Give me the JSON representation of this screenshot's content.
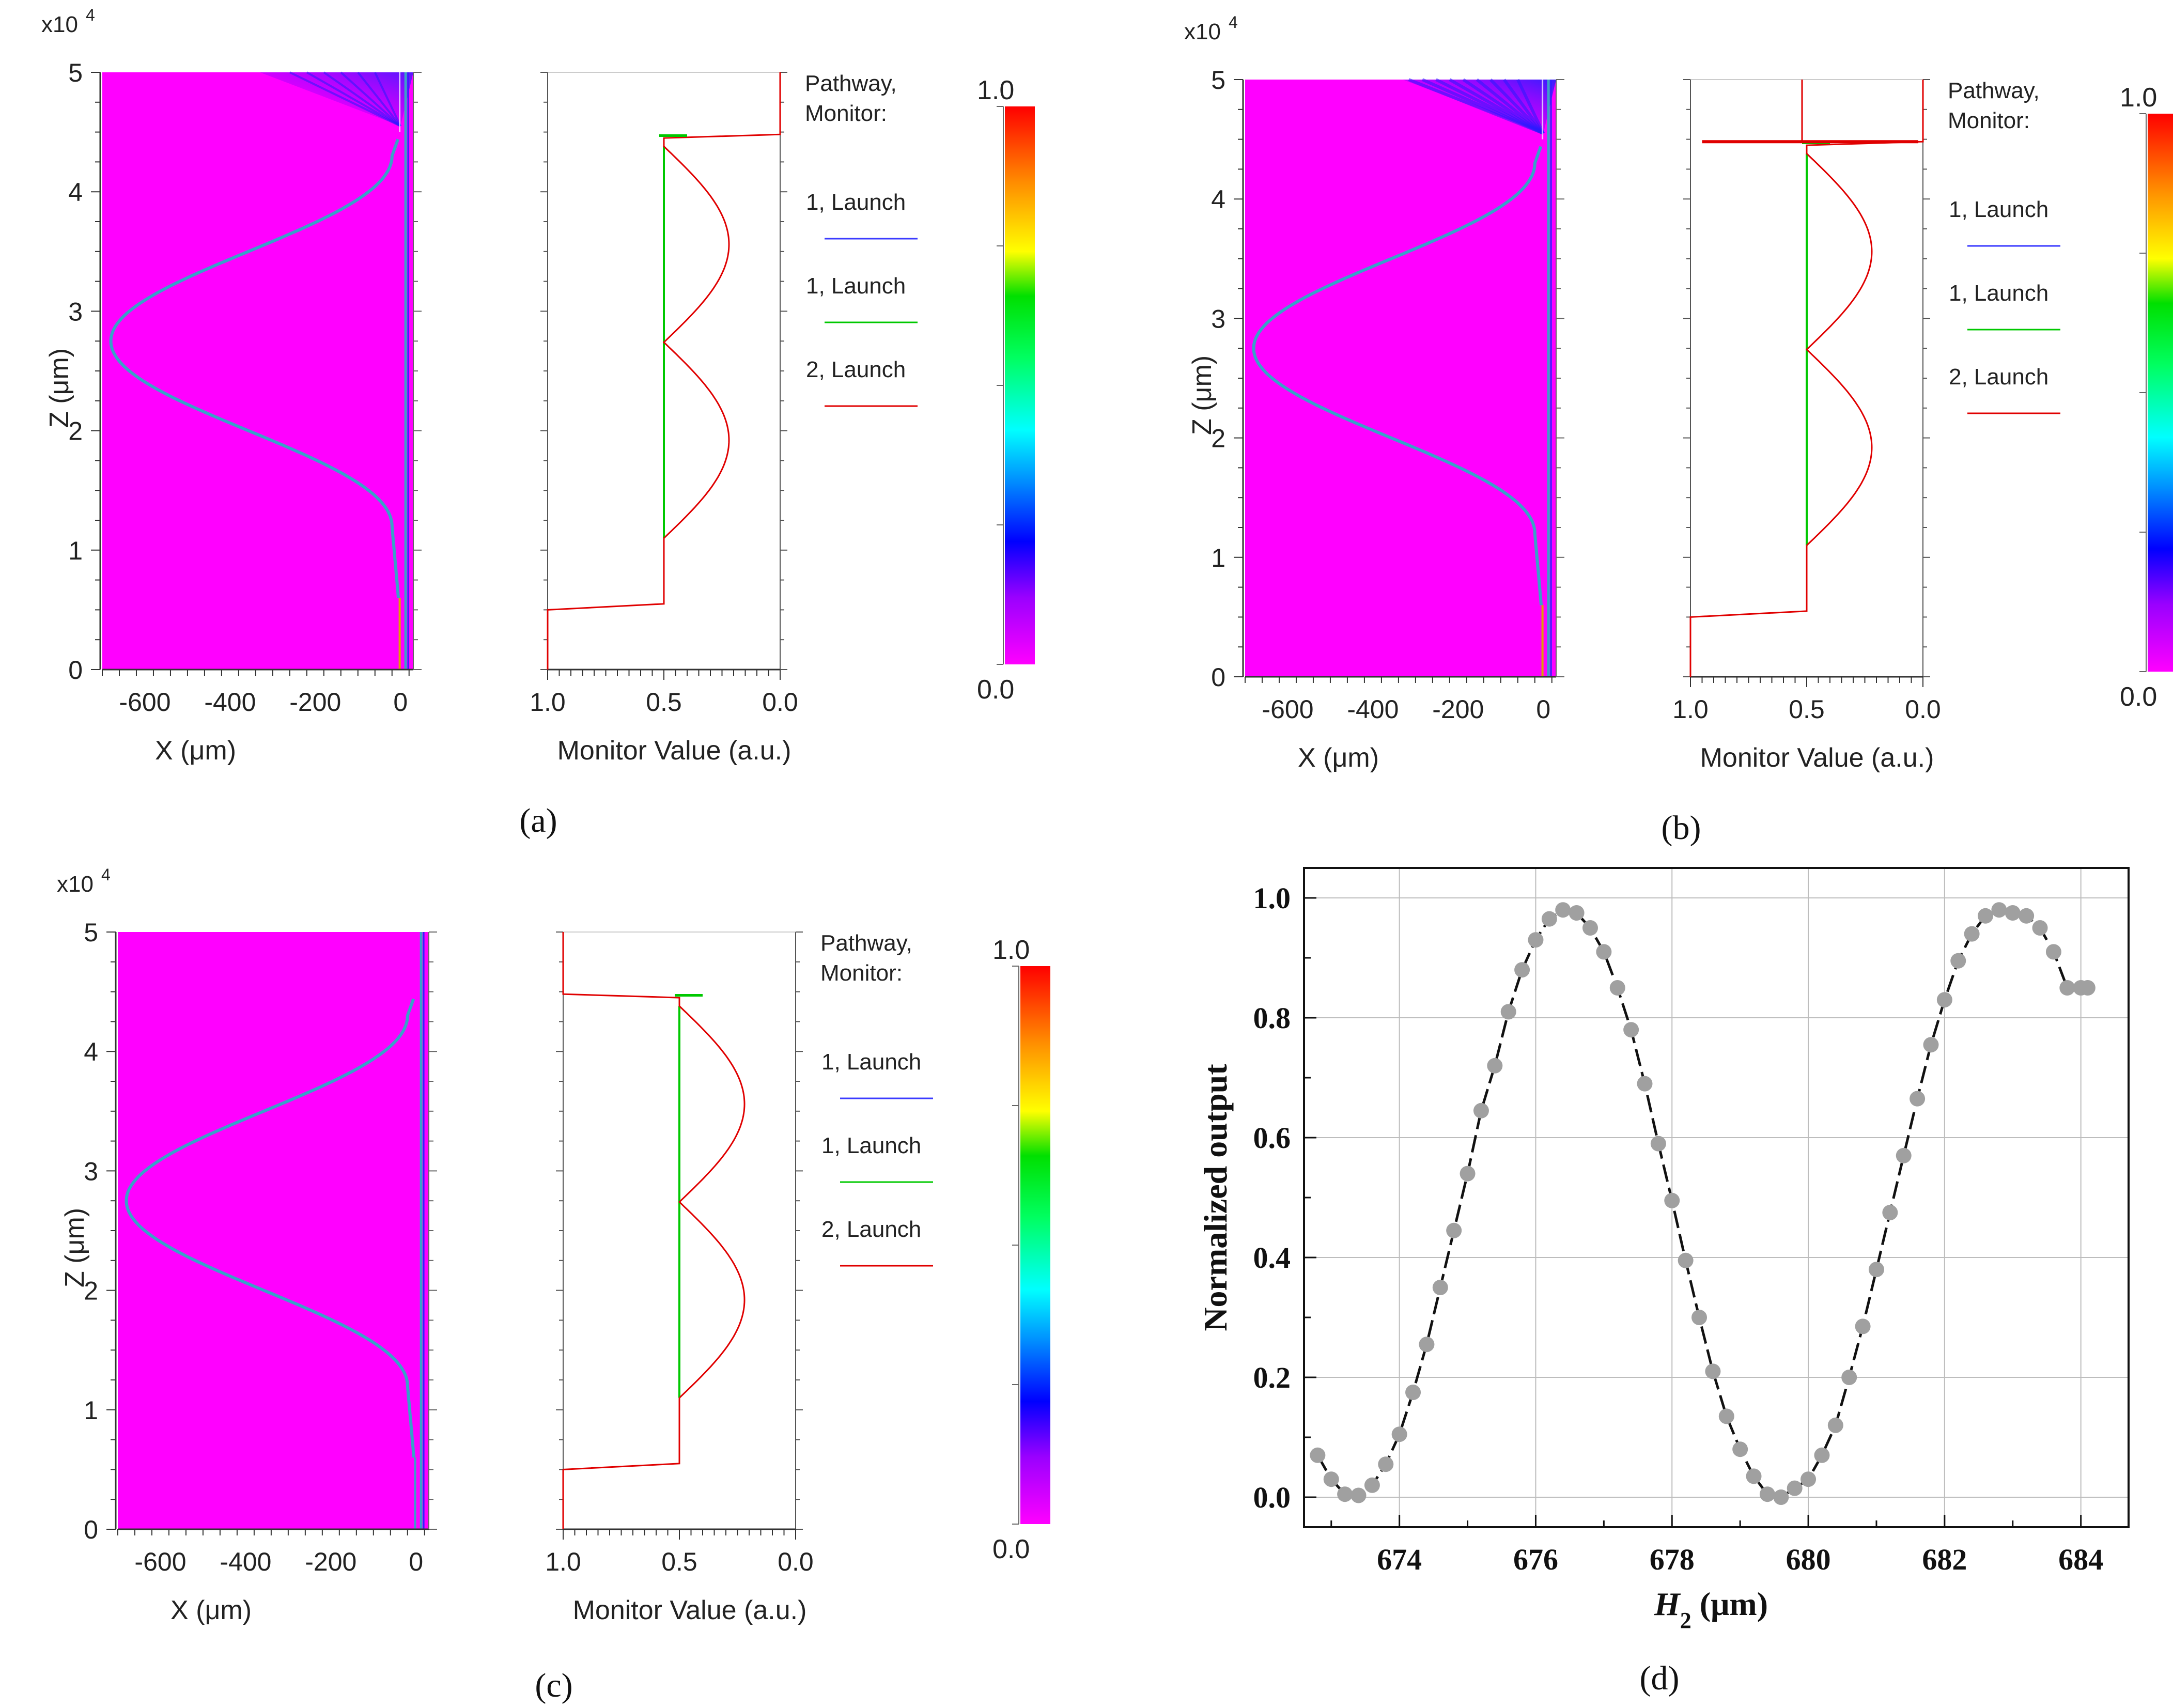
{
  "panels": [
    {
      "id": "a",
      "caption": "(a)",
      "exponent_base": "x10",
      "exponent_power": "4",
      "z_label": "Z (μm)",
      "x_label": "X (μm)",
      "z_ticks": [
        "0",
        "1",
        "2",
        "3",
        "4",
        "5"
      ],
      "x_ticks": [
        "-600",
        "-400",
        "-200",
        "0"
      ],
      "monitor_label": "Monitor Value (a.u.)",
      "monitor_ticks": [
        "1.0",
        "0.5",
        "0.0"
      ],
      "legend_title_1": "Pathway,",
      "legend_title_2": "Monitor:",
      "legend": [
        {
          "label": "1, Launch",
          "color": "#3b3bff"
        },
        {
          "label": "1, Launch",
          "color": "#00c800"
        },
        {
          "label": "2, Launch",
          "color": "#e00000"
        }
      ],
      "colorbar_max": "1.0",
      "colorbar_min": "0.0",
      "variant": "top-taper-radiation"
    },
    {
      "id": "b",
      "caption": "(b)",
      "exponent_base": "x10",
      "exponent_power": "4",
      "z_label": "Z (μm)",
      "x_label": "X (μm)",
      "z_ticks": [
        "0",
        "1",
        "2",
        "3",
        "4",
        "5"
      ],
      "x_ticks": [
        "-600",
        "-400",
        "-200",
        "0"
      ],
      "monitor_label": "Monitor Value (a.u.)",
      "monitor_ticks": [
        "1.0",
        "0.5",
        "0.0"
      ],
      "legend_title_1": "Pathway,",
      "legend_title_2": "Monitor:",
      "legend": [
        {
          "label": "1, Launch",
          "color": "#3b3bff"
        },
        {
          "label": "1, Launch",
          "color": "#00c800"
        },
        {
          "label": "2, Launch",
          "color": "#e00000"
        }
      ],
      "colorbar_max": "1.0",
      "colorbar_min": "0.0",
      "variant": "top-strong-radiation"
    },
    {
      "id": "c",
      "caption": "(c)",
      "exponent_base": "x10",
      "exponent_power": "4",
      "z_label": "Z (μm)",
      "x_label": "X (μm)",
      "z_ticks": [
        "0",
        "1",
        "2",
        "3",
        "4",
        "5"
      ],
      "x_ticks": [
        "-600",
        "-400",
        "-200",
        "0"
      ],
      "monitor_label": "Monitor Value (a.u.)",
      "monitor_ticks": [
        "1.0",
        "0.5",
        "0.0"
      ],
      "legend_title_1": "Pathway,",
      "legend_title_2": "Monitor:",
      "legend": [
        {
          "label": "1, Launch",
          "color": "#3b3bff"
        },
        {
          "label": "1, Launch",
          "color": "#00c800"
        },
        {
          "label": "2, Launch",
          "color": "#e00000"
        }
      ],
      "colorbar_max": "1.0",
      "colorbar_min": "0.0",
      "variant": "no-radiation"
    }
  ],
  "colors": {
    "field_background": "#ff00ff",
    "waveguide": "#3aa0c8",
    "monitor_green": "#00c800",
    "monitor_red": "#e00000",
    "marker": "#a0a0a0"
  },
  "chart_data": {
    "type": "scatter",
    "caption": "(d)",
    "title": "",
    "xlabel_main": "H",
    "xlabel_sub": "2",
    "xlabel_unit": " (μm)",
    "ylabel": "Normalized output",
    "xlim": [
      672.6,
      684.7
    ],
    "ylim": [
      -0.05,
      1.05
    ],
    "xticks": [
      674,
      676,
      678,
      680,
      682,
      684
    ],
    "yticks": [
      0.0,
      0.2,
      0.4,
      0.6,
      0.8,
      1.0
    ],
    "ytick_labels": [
      "0.0",
      "0.2",
      "0.4",
      "0.6",
      "0.8",
      "1.0"
    ],
    "grid": true,
    "series": [
      {
        "name": "simulated",
        "style": "markers",
        "x": [
          672.8,
          673.0,
          673.2,
          673.4,
          673.6,
          673.8,
          674.0,
          674.2,
          674.4,
          674.6,
          674.8,
          675.0,
          675.2,
          675.4,
          675.6,
          675.8,
          676.0,
          676.2,
          676.4,
          676.6,
          676.8,
          677.0,
          677.2,
          677.4,
          677.6,
          677.8,
          678.0,
          678.2,
          678.4,
          678.6,
          678.8,
          679.0,
          679.2,
          679.4,
          679.6,
          679.8,
          680.0,
          680.2,
          680.4,
          680.6,
          680.8,
          681.0,
          681.2,
          681.4,
          681.6,
          681.8,
          682.0,
          682.2,
          682.4,
          682.6,
          682.8,
          683.0,
          683.2,
          683.4,
          683.6,
          683.8,
          684.0,
          684.1
        ],
        "y": [
          0.07,
          0.03,
          0.005,
          0.003,
          0.02,
          0.055,
          0.105,
          0.175,
          0.255,
          0.35,
          0.445,
          0.54,
          0.645,
          0.72,
          0.81,
          0.88,
          0.93,
          0.965,
          0.98,
          0.975,
          0.95,
          0.91,
          0.85,
          0.78,
          0.69,
          0.59,
          0.495,
          0.395,
          0.3,
          0.21,
          0.135,
          0.08,
          0.035,
          0.005,
          0.0,
          0.015,
          0.03,
          0.07,
          0.12,
          0.2,
          0.285,
          0.38,
          0.475,
          0.57,
          0.665,
          0.755,
          0.83,
          0.895,
          0.94,
          0.97,
          0.98,
          0.975,
          0.97,
          0.95,
          0.91,
          0.85,
          0.85,
          0.85
        ]
      },
      {
        "name": "fit",
        "style": "dashed-line",
        "x": [
          672.8,
          673.0,
          673.2,
          673.4,
          673.6,
          673.8,
          674.0,
          674.2,
          674.4,
          674.6,
          674.8,
          675.0,
          675.2,
          675.4,
          675.6,
          675.8,
          676.0,
          676.2,
          676.4,
          676.6,
          676.8,
          677.0,
          677.2,
          677.4,
          677.6,
          677.8,
          678.0,
          678.2,
          678.4,
          678.6,
          678.8,
          679.0,
          679.2,
          679.4,
          679.6,
          679.8,
          680.0,
          680.2,
          680.4,
          680.6,
          680.8,
          681.0,
          681.2,
          681.4,
          681.6,
          681.8,
          682.0,
          682.2,
          682.4,
          682.6,
          682.8,
          683.0,
          683.2,
          683.4,
          683.6,
          683.8,
          684.0,
          684.1
        ],
        "y": [
          0.07,
          0.03,
          0.005,
          0.003,
          0.02,
          0.055,
          0.105,
          0.175,
          0.255,
          0.35,
          0.445,
          0.54,
          0.645,
          0.72,
          0.81,
          0.88,
          0.93,
          0.965,
          0.98,
          0.975,
          0.95,
          0.91,
          0.85,
          0.78,
          0.69,
          0.59,
          0.495,
          0.395,
          0.3,
          0.21,
          0.135,
          0.08,
          0.035,
          0.005,
          0.0,
          0.015,
          0.03,
          0.07,
          0.12,
          0.2,
          0.285,
          0.38,
          0.475,
          0.57,
          0.665,
          0.755,
          0.83,
          0.895,
          0.94,
          0.97,
          0.98,
          0.975,
          0.97,
          0.95,
          0.91,
          0.85,
          0.85,
          0.85
        ]
      }
    ]
  }
}
